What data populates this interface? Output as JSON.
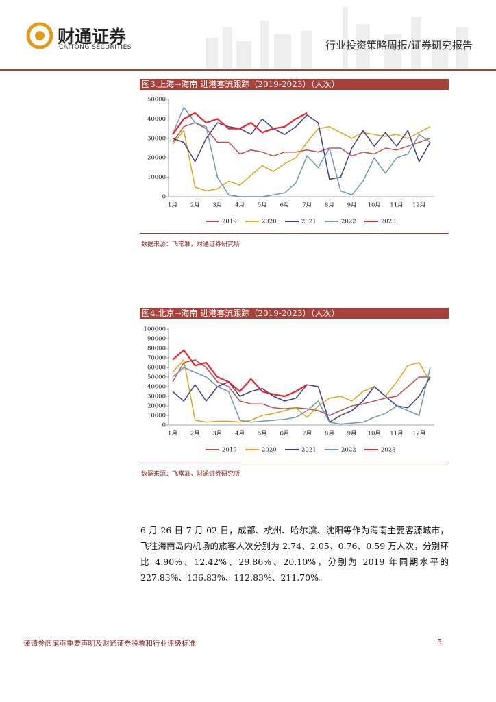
{
  "header": {
    "logo_cn": "财通证券",
    "logo_en": "CAITONG SECURITIES",
    "report_type": "行业投资策略周报/证券研究报告"
  },
  "chart_data": [
    {
      "type": "line",
      "title": "图3.上海→海南 进港客流跟踪（2019-2023）（人次）",
      "categories": [
        "1月",
        null,
        "2月",
        null,
        "3月",
        null,
        "4月",
        null,
        "5月",
        null,
        "6月",
        null,
        "7月",
        null,
        "8月",
        null,
        "9月",
        null,
        "10月",
        null,
        "11月",
        null,
        "12月",
        null
      ],
      "ylim": [
        0,
        50000
      ],
      "yticks": [
        0,
        10000,
        20000,
        30000,
        40000,
        50000
      ],
      "series": [
        {
          "name": "2019",
          "color": "#c0504d",
          "values": [
            28000,
            36000,
            38000,
            35000,
            28000,
            28000,
            22000,
            24000,
            23000,
            21000,
            23000,
            23000,
            24000,
            23000,
            25000,
            25000,
            21000,
            23000,
            22000,
            25000,
            24000,
            26000,
            28000,
            30000
          ]
        },
        {
          "name": "2020",
          "color": "#e0a520",
          "values": [
            27000,
            34000,
            5000,
            3000,
            4000,
            8000,
            6000,
            11000,
            16000,
            13000,
            17000,
            20000,
            28000,
            35000,
            36000,
            33000,
            30000,
            33000,
            32000,
            31000,
            32000,
            30000,
            33000,
            36000
          ]
        },
        {
          "name": "2021",
          "color": "#3b3f8f",
          "values": [
            30000,
            28000,
            18000,
            30000,
            38000,
            36000,
            35000,
            32000,
            40000,
            35000,
            32000,
            36000,
            42000,
            38000,
            9000,
            10000,
            25000,
            34000,
            26000,
            33000,
            26000,
            34000,
            18000,
            28000
          ]
        },
        {
          "name": "2022",
          "color": "#6f97b0",
          "values": [
            32000,
            46000,
            38000,
            36000,
            10000,
            1000,
            0,
            0,
            0,
            1000,
            2000,
            7000,
            21000,
            15000,
            25000,
            3000,
            1000,
            8000,
            20000,
            12000,
            20000,
            22000,
            32000,
            28000
          ]
        },
        {
          "name": "2023",
          "color": "#e8262b",
          "values": [
            32000,
            40000,
            43000,
            38000,
            40000,
            35000,
            35000,
            38000,
            33000,
            35000,
            36000,
            40000,
            43000,
            null,
            null,
            null,
            null,
            null,
            null,
            null,
            null,
            null,
            null,
            null
          ]
        }
      ],
      "source": "数据来源：飞常准，财通证券研究所"
    },
    {
      "type": "line",
      "title": "图4.北京→海南 进港客流跟踪（2019-2023）（人次）",
      "categories": [
        "1月",
        null,
        "2月",
        null,
        "3月",
        null,
        "4月",
        null,
        "5月",
        null,
        "6月",
        null,
        "7月",
        null,
        "8月",
        null,
        "9月",
        null,
        "10月",
        null,
        "11月",
        null,
        "12月",
        null
      ],
      "ylim": [
        0,
        100000
      ],
      "yticks": [
        0,
        10000,
        20000,
        30000,
        40000,
        50000,
        60000,
        70000,
        80000,
        90000,
        100000
      ],
      "series": [
        {
          "name": "2019",
          "color": "#c0504d",
          "values": [
            45000,
            65000,
            68000,
            60000,
            45000,
            40000,
            25000,
            22000,
            22000,
            18000,
            17000,
            18000,
            17000,
            15000,
            10000,
            15000,
            20000,
            22000,
            25000,
            28000,
            30000,
            40000,
            50000,
            50000
          ]
        },
        {
          "name": "2020",
          "color": "#e0a520",
          "values": [
            55000,
            68000,
            5000,
            3000,
            4000,
            4000,
            3000,
            5000,
            10000,
            12000,
            15000,
            18000,
            8000,
            20000,
            28000,
            30000,
            25000,
            35000,
            40000,
            30000,
            45000,
            62000,
            65000,
            45000
          ]
        },
        {
          "name": "2021",
          "color": "#3b3f8f",
          "values": [
            35000,
            25000,
            42000,
            25000,
            40000,
            45000,
            30000,
            35000,
            38000,
            30000,
            25000,
            28000,
            42000,
            40000,
            3000,
            10000,
            15000,
            25000,
            40000,
            30000,
            20000,
            18000,
            30000,
            50000
          ]
        },
        {
          "name": "2022",
          "color": "#6f97b0",
          "values": [
            50000,
            60000,
            55000,
            50000,
            40000,
            35000,
            5000,
            3000,
            4000,
            5000,
            6000,
            8000,
            15000,
            25000,
            3000,
            1000,
            2000,
            3000,
            8000,
            12000,
            20000,
            15000,
            10000,
            60000
          ]
        },
        {
          "name": "2023",
          "color": "#e8262b",
          "values": [
            68000,
            78000,
            62000,
            65000,
            50000,
            45000,
            35000,
            48000,
            35000,
            32000,
            30000,
            35000,
            42000,
            null,
            null,
            null,
            null,
            null,
            null,
            null,
            null,
            null,
            null,
            null
          ]
        }
      ],
      "source": "数据来源：飞常准，财通证券研究所"
    }
  ],
  "body": {
    "paragraph": "6 月 26 日-7 月 02 日，成都、杭州、哈尔滨、沈阳等作为海南主要客源城市，飞往海南岛内机场的旅客人次分别为 2.74、2.05、0.76、0.59 万人次，分别环比 4.90%、12.42%、29.86%、20.10%，分别为 2019 年同期水平的 227.83%、136.83%、112.83%、211.70%。"
  },
  "footer": {
    "disclaimer": "谨请参阅尾页重要声明及财通证券股票和行业评级标准",
    "page": "5"
  }
}
